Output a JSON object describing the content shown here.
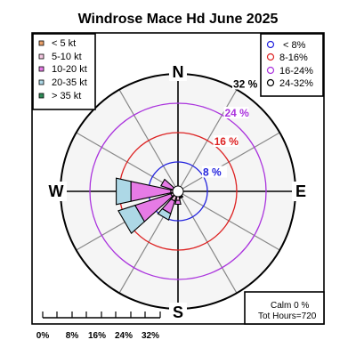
{
  "chart_data": {
    "type": "windrose",
    "title": "Windrose  Mace Hd June 2025",
    "directions": {
      "north": "N",
      "south": "S",
      "east": "E",
      "west": "W"
    },
    "rings": [
      {
        "value": 8,
        "label": "8 %",
        "color": "#2222dd"
      },
      {
        "value": 16,
        "label": "16 %",
        "color": "#dd2222"
      },
      {
        "value": 24,
        "label": "24 %",
        "color": "#aa33dd"
      },
      {
        "value": 32,
        "label": "32 %",
        "color": "#000000"
      }
    ],
    "speed_legend": {
      "placement": "top-left",
      "classes": [
        {
          "label": "< 5  kt",
          "color": "#e9a06a"
        },
        {
          "label": "5-10 kt",
          "color": "#f2c6e0"
        },
        {
          "label": "10-20 kt",
          "color": "#e67be6"
        },
        {
          "label": "20-35 kt",
          "color": "#add8e6"
        },
        {
          "label": "> 35 kt",
          "color": "#2e8b57"
        }
      ]
    },
    "ring_legend": {
      "placement": "top-right",
      "items": [
        {
          "label": "< 8%",
          "color": "#2222dd"
        },
        {
          "label": "8-16%",
          "color": "#dd2222"
        },
        {
          "label": "16-24%",
          "color": "#aa33dd"
        },
        {
          "label": "24-32%",
          "color": "#000000"
        }
      ]
    },
    "sectors_deg": [
      0,
      30,
      60,
      90,
      120,
      150,
      180,
      210,
      240,
      270,
      300,
      330
    ],
    "series": [
      {
        "name": "< 5  kt",
        "values": [
          0.1,
          0.1,
          0.1,
          0.1,
          0.1,
          0.2,
          0.2,
          0.3,
          0.3,
          0.3,
          0.2,
          0.1
        ]
      },
      {
        "name": "5-10 kt",
        "values": [
          0.3,
          0.2,
          0.2,
          0.2,
          0.6,
          1.5,
          2.3,
          2.5,
          1.8,
          1.7,
          1.3,
          0.7
        ]
      },
      {
        "name": "10-20 kt",
        "values": [
          0,
          0,
          0,
          0,
          0,
          0.3,
          1.1,
          3.6,
          10.2,
          11.1,
          3.4,
          0.4
        ]
      },
      {
        "name": "20-35 kt",
        "values": [
          0,
          0,
          0,
          0,
          0,
          0,
          0,
          1.8,
          4.8,
          4.1,
          0,
          0
        ]
      },
      {
        "name": "> 35 kt",
        "values": [
          0,
          0,
          0,
          0,
          0,
          0,
          0,
          0,
          0,
          0,
          0,
          0
        ]
      }
    ],
    "rmax": 32,
    "scale_bar": {
      "ticks": [
        "0%",
        "8%",
        "16%",
        "24%",
        "32%"
      ]
    },
    "info": {
      "calm": "Calm 0 %",
      "hours": "Tot Hours=720"
    }
  }
}
